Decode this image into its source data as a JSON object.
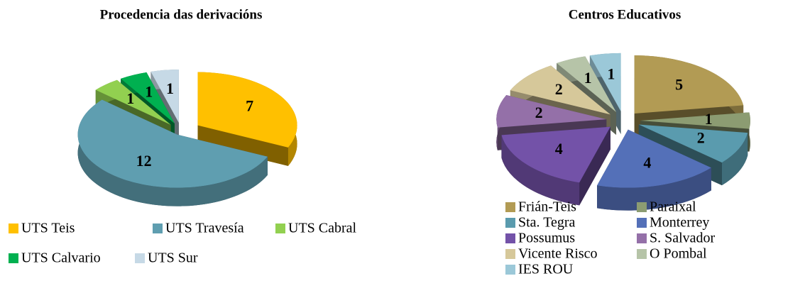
{
  "chart_data": [
    {
      "type": "pie",
      "title": "Procedencia das derivacións",
      "categories": [
        "UTS Teis",
        "UTS Travesía",
        "UTS Cabral",
        "UTS Calvario",
        "UTS Sur"
      ],
      "values": [
        7,
        12,
        1,
        1,
        1
      ],
      "colors": [
        "#FFC000",
        "#5F9EB0",
        "#92D050",
        "#00B050",
        "#C6D9E6"
      ]
    },
    {
      "type": "pie",
      "title": "Centros Educativos",
      "categories": [
        "Frián-Teis",
        "Paraixal",
        "Sta. Tegra",
        "Monterrey",
        "Possumus",
        "S. Salvador",
        "Vicente Risco",
        "O Pombal",
        "IES ROU"
      ],
      "values": [
        5,
        1,
        2,
        4,
        4,
        2,
        2,
        1,
        1
      ],
      "colors": [
        "#B29B54",
        "#8C9C72",
        "#5A9BAE",
        "#5470B8",
        "#7352A8",
        "#9470A8",
        "#D6C89A",
        "#B6C4A8",
        "#9BC8D8"
      ]
    }
  ]
}
